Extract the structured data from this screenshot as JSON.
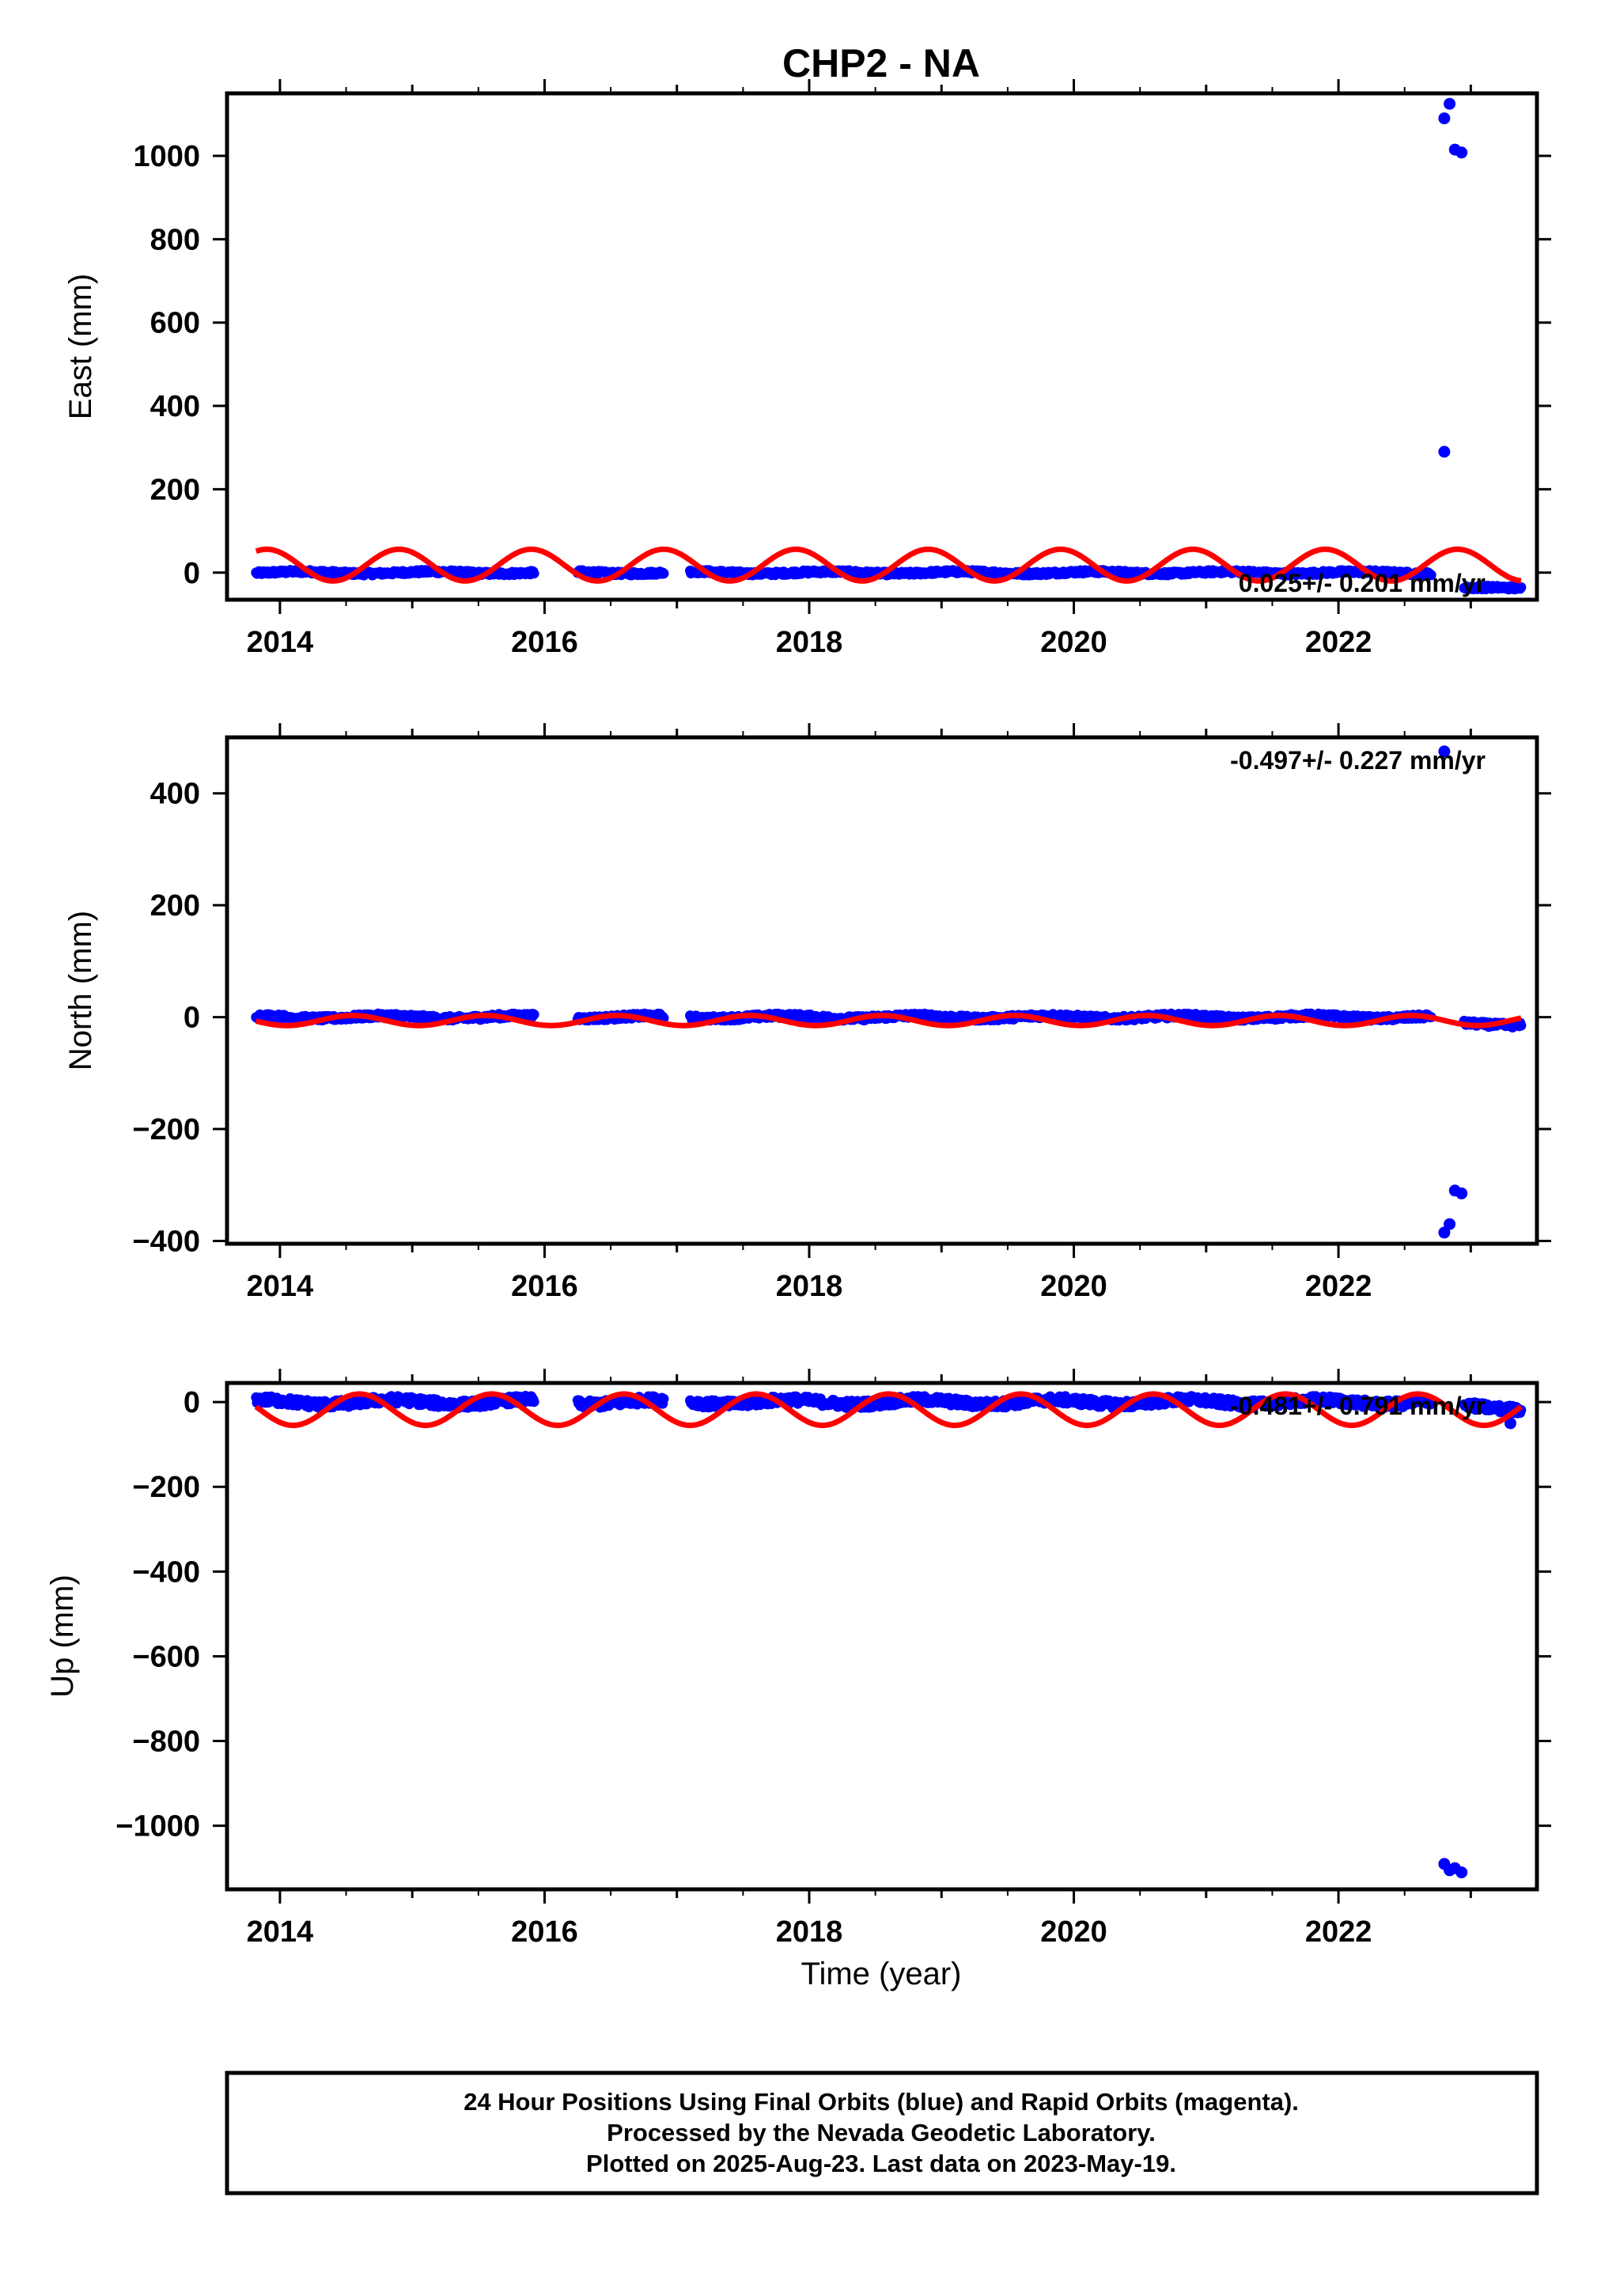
{
  "title": "CHP2 - NA",
  "xlabel": "Time (year)",
  "footer": [
    "24 Hour Positions Using Final Orbits (blue) and Rapid Orbits (magenta).",
    "Processed by the Nevada Geodetic Laboratory.",
    "Plotted on 2025-Aug-23. Last data on 2023-May-19."
  ],
  "colors": {
    "final_orbits": "#0000ff",
    "model": "#ff0000",
    "frame": "#000000"
  },
  "chart_data": [
    {
      "type": "scatter",
      "ylabel": "East (mm)",
      "rate": "0.025+/- 0.201 mm/yr",
      "xlim": [
        2013.6,
        2023.5
      ],
      "ylim": [
        -65,
        1150
      ],
      "xticks": [
        2014,
        2016,
        2018,
        2020,
        2022
      ],
      "yticks": [
        0,
        200,
        400,
        600,
        800,
        1000
      ],
      "data_segments": [
        [
          2013.82,
          2015.92
        ],
        [
          2016.25,
          2016.9
        ],
        [
          2017.1,
          2022.7
        ],
        [
          2022.95,
          2023.38
        ]
      ],
      "outliers": [
        [
          2022.8,
          290
        ],
        [
          2022.8,
          1090
        ],
        [
          2022.84,
          1125
        ],
        [
          2022.88,
          1015
        ],
        [
          2022.93,
          1008
        ]
      ],
      "model": {
        "amplitude": 38,
        "offset": 18,
        "phase_year": 2014.9,
        "end": 2023.38
      }
    },
    {
      "type": "scatter",
      "ylabel": "North (mm)",
      "rate": "-0.497+/- 0.227 mm/yr",
      "xlim": [
        2013.6,
        2023.5
      ],
      "ylim": [
        -405,
        500
      ],
      "xticks": [
        2014,
        2016,
        2018,
        2020,
        2022
      ],
      "yticks": [
        -400,
        -200,
        0,
        200,
        400
      ],
      "data_segments": [
        [
          2013.82,
          2015.92
        ],
        [
          2016.25,
          2016.9
        ],
        [
          2017.1,
          2022.7
        ],
        [
          2022.95,
          2023.38
        ]
      ],
      "outliers": [
        [
          2022.8,
          475
        ],
        [
          2022.8,
          -385
        ],
        [
          2022.84,
          -370
        ],
        [
          2022.88,
          -310
        ],
        [
          2022.93,
          -315
        ]
      ],
      "model": {
        "amplitude": 9,
        "offset": -6,
        "phase_year": 2014.55,
        "end": 2023.38
      }
    },
    {
      "type": "scatter",
      "ylabel": "Up (mm)",
      "rate": "-0.481+/- 0.791 mm/yr",
      "xlim": [
        2013.6,
        2023.5
      ],
      "ylim": [
        -1150,
        45
      ],
      "xticks": [
        2014,
        2016,
        2018,
        2020,
        2022
      ],
      "yticks": [
        -1000,
        -800,
        -600,
        -400,
        -200,
        0
      ],
      "data_segments": [
        [
          2013.82,
          2015.92
        ],
        [
          2016.25,
          2016.9
        ],
        [
          2017.1,
          2022.7
        ],
        [
          2022.95,
          2023.38
        ]
      ],
      "outliers": [
        [
          2022.8,
          -1090
        ],
        [
          2022.84,
          -1105
        ],
        [
          2022.88,
          -1100
        ],
        [
          2022.93,
          -1110
        ],
        [
          2023.3,
          -50
        ]
      ],
      "model": {
        "amplitude": 37,
        "offset": -18,
        "phase_year": 2014.6,
        "end": 2023.38
      }
    }
  ]
}
